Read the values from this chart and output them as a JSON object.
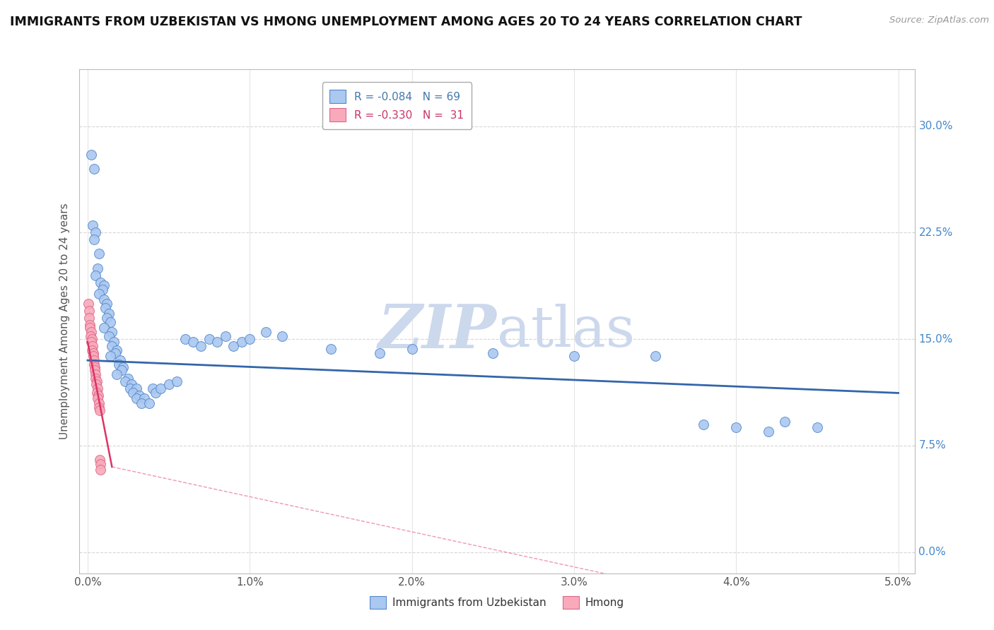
{
  "title": "IMMIGRANTS FROM UZBEKISTAN VS HMONG UNEMPLOYMENT AMONG AGES 20 TO 24 YEARS CORRELATION CHART",
  "source": "Source: ZipAtlas.com",
  "ylabel": "Unemployment Among Ages 20 to 24 years",
  "legend_uzbekistan": "Immigrants from Uzbekistan",
  "legend_hmong": "Hmong",
  "r_uzbekistan": "-0.084",
  "n_uzbekistan": "69",
  "r_hmong": "-0.330",
  "n_hmong": "31",
  "uzbekistan_color": "#aac8f0",
  "uzbekistan_edge": "#5588cc",
  "hmong_color": "#f8aabb",
  "hmong_edge": "#dd6688",
  "line_uzbekistan_color": "#3366aa",
  "line_hmong_color": "#dd3366",
  "watermark_color": "#ccd8ec",
  "uzbekistan_scatter": [
    [
      0.0002,
      0.28
    ],
    [
      0.0004,
      0.27
    ],
    [
      0.0003,
      0.23
    ],
    [
      0.0005,
      0.225
    ],
    [
      0.0004,
      0.22
    ],
    [
      0.0007,
      0.21
    ],
    [
      0.0006,
      0.2
    ],
    [
      0.0005,
      0.195
    ],
    [
      0.0008,
      0.19
    ],
    [
      0.001,
      0.188
    ],
    [
      0.0009,
      0.185
    ],
    [
      0.0007,
      0.182
    ],
    [
      0.001,
      0.178
    ],
    [
      0.0012,
      0.175
    ],
    [
      0.0011,
      0.172
    ],
    [
      0.0013,
      0.168
    ],
    [
      0.0012,
      0.165
    ],
    [
      0.0014,
      0.162
    ],
    [
      0.001,
      0.158
    ],
    [
      0.0015,
      0.155
    ],
    [
      0.0013,
      0.152
    ],
    [
      0.0016,
      0.148
    ],
    [
      0.0015,
      0.145
    ],
    [
      0.0018,
      0.142
    ],
    [
      0.0017,
      0.14
    ],
    [
      0.0014,
      0.138
    ],
    [
      0.002,
      0.135
    ],
    [
      0.0019,
      0.132
    ],
    [
      0.0022,
      0.13
    ],
    [
      0.0021,
      0.128
    ],
    [
      0.0018,
      0.125
    ],
    [
      0.0025,
      0.122
    ],
    [
      0.0023,
      0.12
    ],
    [
      0.0027,
      0.118
    ],
    [
      0.0026,
      0.115
    ],
    [
      0.003,
      0.115
    ],
    [
      0.0028,
      0.112
    ],
    [
      0.0032,
      0.11
    ],
    [
      0.003,
      0.108
    ],
    [
      0.0035,
      0.108
    ],
    [
      0.0033,
      0.105
    ],
    [
      0.0038,
      0.105
    ],
    [
      0.004,
      0.115
    ],
    [
      0.0042,
      0.112
    ],
    [
      0.0045,
      0.115
    ],
    [
      0.005,
      0.118
    ],
    [
      0.0055,
      0.12
    ],
    [
      0.006,
      0.15
    ],
    [
      0.0065,
      0.148
    ],
    [
      0.007,
      0.145
    ],
    [
      0.0075,
      0.15
    ],
    [
      0.008,
      0.148
    ],
    [
      0.0085,
      0.152
    ],
    [
      0.009,
      0.145
    ],
    [
      0.0095,
      0.148
    ],
    [
      0.01,
      0.15
    ],
    [
      0.011,
      0.155
    ],
    [
      0.012,
      0.152
    ],
    [
      0.015,
      0.143
    ],
    [
      0.018,
      0.14
    ],
    [
      0.02,
      0.143
    ],
    [
      0.025,
      0.14
    ],
    [
      0.03,
      0.138
    ],
    [
      0.035,
      0.138
    ],
    [
      0.038,
      0.09
    ],
    [
      0.04,
      0.088
    ],
    [
      0.042,
      0.085
    ],
    [
      0.043,
      0.092
    ],
    [
      0.045,
      0.088
    ]
  ],
  "hmong_scatter": [
    [
      5e-05,
      0.175
    ],
    [
      0.0001,
      0.17
    ],
    [
      8e-05,
      0.165
    ],
    [
      0.00015,
      0.16
    ],
    [
      0.00012,
      0.158
    ],
    [
      0.0002,
      0.155
    ],
    [
      0.00018,
      0.152
    ],
    [
      0.00025,
      0.15
    ],
    [
      0.00022,
      0.148
    ],
    [
      0.0003,
      0.145
    ],
    [
      0.00028,
      0.142
    ],
    [
      0.00035,
      0.14
    ],
    [
      0.00033,
      0.138
    ],
    [
      0.0004,
      0.135
    ],
    [
      0.00038,
      0.132
    ],
    [
      0.00045,
      0.13
    ],
    [
      0.00042,
      0.128
    ],
    [
      0.0005,
      0.125
    ],
    [
      0.00048,
      0.122
    ],
    [
      0.00055,
      0.12
    ],
    [
      0.00053,
      0.118
    ],
    [
      0.0006,
      0.115
    ],
    [
      0.00058,
      0.112
    ],
    [
      0.00065,
      0.11
    ],
    [
      0.00063,
      0.108
    ],
    [
      0.0007,
      0.105
    ],
    [
      0.00068,
      0.102
    ],
    [
      0.00075,
      0.1
    ],
    [
      0.00073,
      0.065
    ],
    [
      0.0008,
      0.062
    ],
    [
      0.00078,
      0.058
    ]
  ],
  "xlim": [
    -0.0005,
    0.051
  ],
  "ylim": [
    -0.015,
    0.34
  ],
  "xtick_positions": [
    0.0,
    0.01,
    0.02,
    0.03,
    0.04,
    0.05
  ],
  "ytick_positions": [
    0.0,
    0.075,
    0.15,
    0.225,
    0.3
  ],
  "ytick_labels_right": [
    "0.0%",
    "7.5%",
    "15.0%",
    "22.5%",
    "30.0%"
  ],
  "xtick_labels": [
    "0.0%",
    "1.0%",
    "2.0%",
    "3.0%",
    "4.0%",
    "5.0%"
  ],
  "background_color": "#ffffff",
  "grid_color": "#cccccc"
}
